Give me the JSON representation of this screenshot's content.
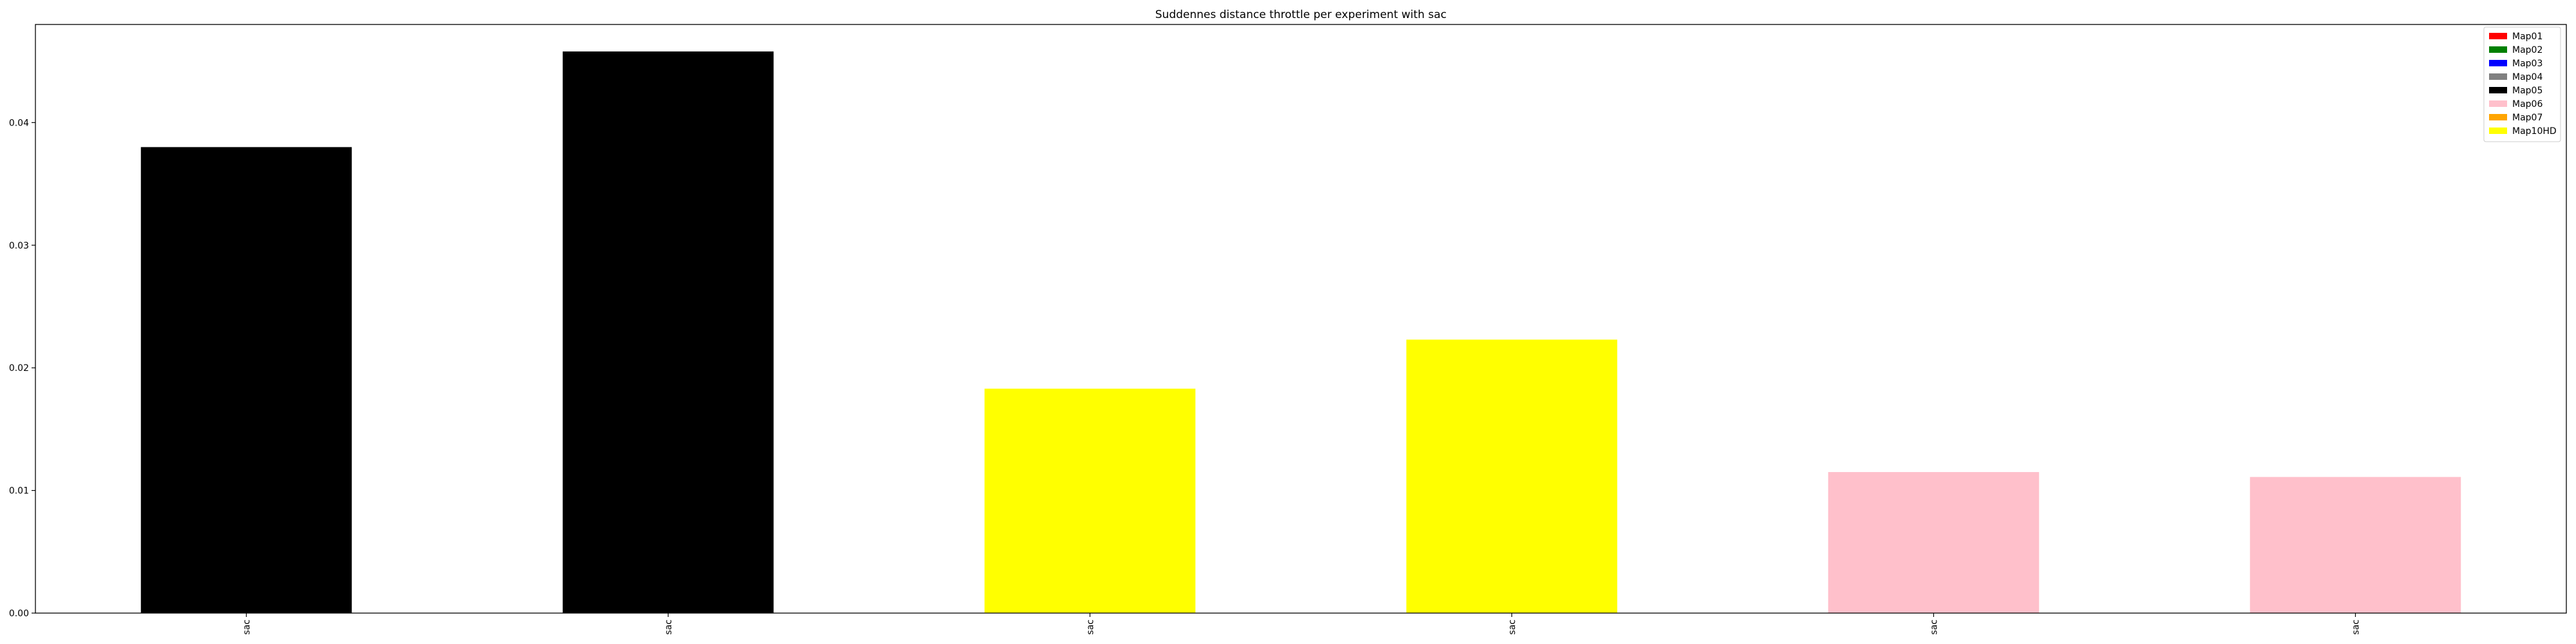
{
  "chart_data": {
    "type": "bar",
    "title": "Suddennes distance throttle per experiment with sac",
    "xlabel": "",
    "ylabel": "",
    "categories": [
      "sac",
      "sac",
      "sac",
      "sac",
      "sac",
      "sac"
    ],
    "values": [
      0.038,
      0.0458,
      0.0183,
      0.0223,
      0.0115,
      0.0111
    ],
    "bar_colors": [
      "#000000",
      "#000000",
      "#ffff00",
      "#ffff00",
      "#ffc0cb",
      "#ffc0cb"
    ],
    "ylim": [
      0,
      0.048
    ],
    "yticks": [
      0.0,
      0.01,
      0.02,
      0.03,
      0.04
    ],
    "ytick_labels": [
      "0.00",
      "0.01",
      "0.02",
      "0.03",
      "0.04"
    ],
    "grid": false,
    "legend_position": "top-right",
    "legend": [
      {
        "label": "Map01",
        "color": "#ff0000"
      },
      {
        "label": "Map02",
        "color": "#008000"
      },
      {
        "label": "Map03",
        "color": "#0000ff"
      },
      {
        "label": "Map04",
        "color": "#808080"
      },
      {
        "label": "Map05",
        "color": "#000000"
      },
      {
        "label": "Map06",
        "color": "#ffc0cb"
      },
      {
        "label": "Map07",
        "color": "#ffa500"
      },
      {
        "label": "Map10HD",
        "color": "#ffff00"
      }
    ]
  }
}
